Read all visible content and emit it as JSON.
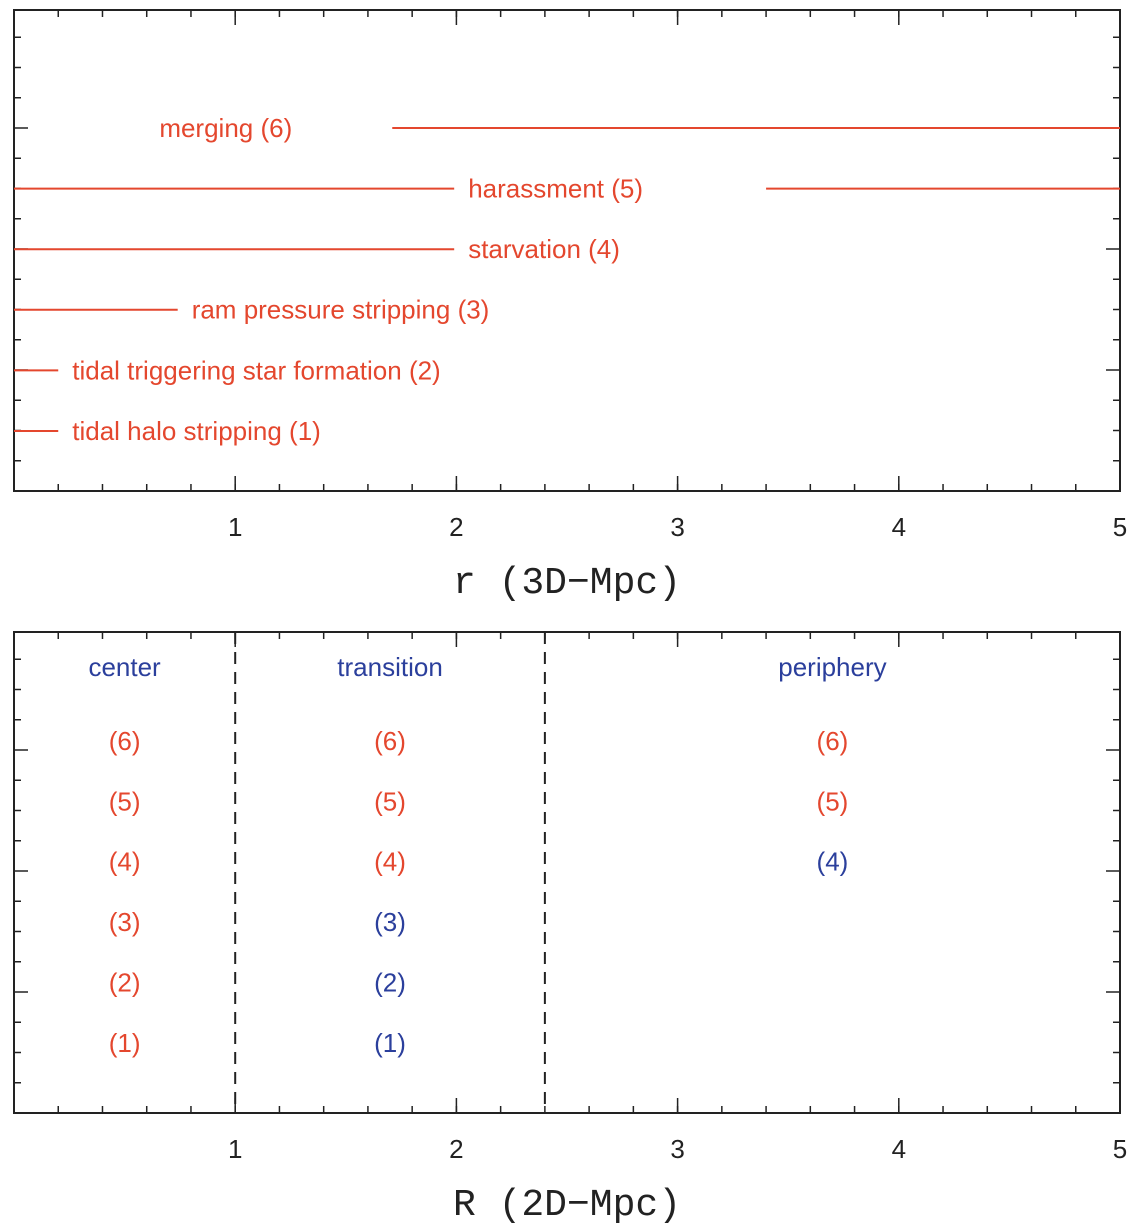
{
  "chart_data": [
    {
      "type": "range",
      "xlabel": "r (3D−Mpc)",
      "xlim": [
        0,
        5
      ],
      "xticks": [
        1,
        2,
        3,
        4,
        5
      ],
      "minor_step": 0.2,
      "color": "#e4472e",
      "mechanisms": [
        {
          "label": "tidal halo stripping (1)",
          "ranges": [
            [
              0,
              0.2
            ]
          ]
        },
        {
          "label": "tidal triggering star formation (2)",
          "ranges": [
            [
              0,
              0.2
            ]
          ]
        },
        {
          "label": "ram pressure stripping (3)",
          "ranges": [
            [
              0,
              0.74
            ]
          ]
        },
        {
          "label": "starvation (4)",
          "ranges": [
            [
              0,
              1.99
            ]
          ]
        },
        {
          "label": "harassment (5)",
          "ranges": [
            [
              0,
              1.99
            ],
            [
              3.4,
              5
            ]
          ]
        },
        {
          "label": "merging (6)",
          "ranges": [
            [
              1.71,
              5
            ]
          ]
        }
      ]
    },
    {
      "type": "zones",
      "xlabel": "R (2D−Mpc)",
      "xlim": [
        0,
        5
      ],
      "xticks": [
        1,
        2,
        3,
        4,
        5
      ],
      "minor_step": 0.2,
      "title_color": "#2b3f9c",
      "zones": [
        {
          "name": "center",
          "start": 0,
          "end": 1,
          "entries": [
            {
              "label": "(6)",
              "color": "#e4472e"
            },
            {
              "label": "(5)",
              "color": "#e4472e"
            },
            {
              "label": "(4)",
              "color": "#e4472e"
            },
            {
              "label": "(3)",
              "color": "#e4472e"
            },
            {
              "label": "(2)",
              "color": "#e4472e"
            },
            {
              "label": "(1)",
              "color": "#e4472e"
            }
          ]
        },
        {
          "name": "transition",
          "start": 1,
          "end": 2.4,
          "entries": [
            {
              "label": "(6)",
              "color": "#e4472e"
            },
            {
              "label": "(5)",
              "color": "#e4472e"
            },
            {
              "label": "(4)",
              "color": "#e4472e"
            },
            {
              "label": "(3)",
              "color": "#2b3f9c"
            },
            {
              "label": "(2)",
              "color": "#2b3f9c"
            },
            {
              "label": "(1)",
              "color": "#2b3f9c"
            }
          ]
        },
        {
          "name": "periphery",
          "start": 2.4,
          "end": 5,
          "entries": [
            {
              "label": "(6)",
              "color": "#e4472e"
            },
            {
              "label": "(5)",
              "color": "#e4472e"
            },
            {
              "label": "(4)",
              "color": "#2b3f9c"
            }
          ]
        }
      ]
    }
  ]
}
